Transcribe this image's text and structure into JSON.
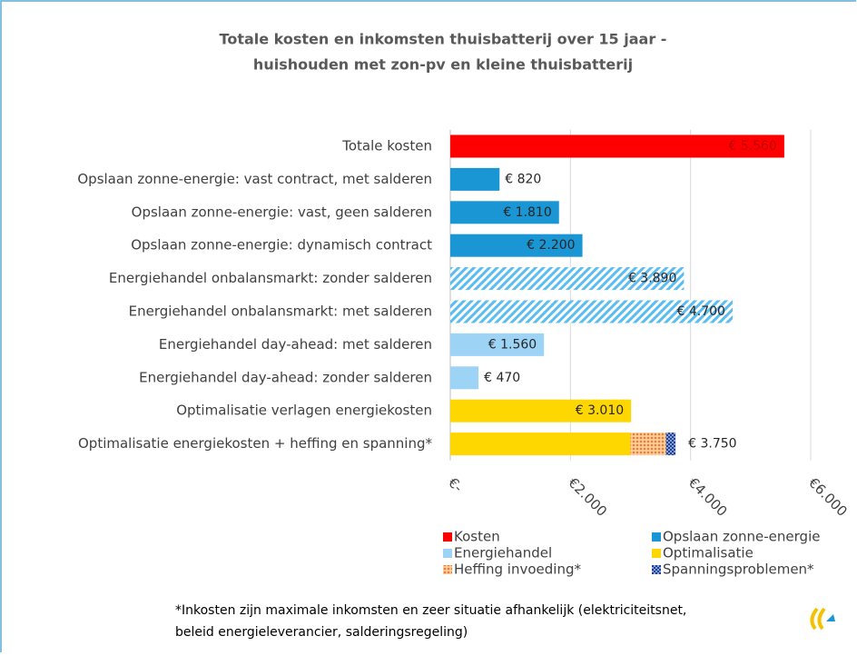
{
  "chart_data": {
    "type": "hbar-stacked",
    "title": [
      "Totale kosten en inkomsten thuisbatterij over 15 jaar -",
      "huishouden met zon-pv en kleine thuisbatterij"
    ],
    "categories": [
      "Totale kosten",
      "Opslaan zonne-energie: vast contract, met salderen",
      "Opslaan zonne-energie: vast, geen salderen",
      "Opslaan zonne-energie: dynamisch contract",
      "Energiehandel onbalansmarkt: zonder salderen",
      "Energiehandel onbalansmarkt: met salderen",
      "Energiehandel day-ahead: met salderen",
      "Energiehandel day-ahead: zonder salderen",
      "Optimalisatie verlagen energiekosten",
      "Optimalisatie energiekosten + heffing en spanning*"
    ],
    "series": [
      {
        "name": "Kosten",
        "color": "#ff0000",
        "values": [
          5560,
          null,
          null,
          null,
          null,
          null,
          null,
          null,
          null,
          null
        ],
        "value_labels": [
          "€ 5.560",
          null,
          null,
          null,
          null,
          null,
          null,
          null,
          null,
          null
        ]
      },
      {
        "name": "Opslaan zonne-energie",
        "color": "#1a96d4",
        "values": [
          null,
          820,
          1810,
          2200,
          null,
          null,
          null,
          null,
          null,
          null
        ],
        "value_labels": [
          null,
          "€ 820",
          "€ 1.810",
          "€ 2.200",
          null,
          null,
          null,
          null,
          null,
          null
        ]
      },
      {
        "name": "Energiehandel",
        "color": "#9dd3f5",
        "hatch": [
          false,
          false,
          false,
          false,
          true,
          true,
          false,
          false,
          false,
          false
        ],
        "values": [
          null,
          null,
          null,
          null,
          3890,
          4700,
          1560,
          470,
          null,
          null
        ],
        "value_labels": [
          null,
          null,
          null,
          null,
          "€ 3.890",
          "€ 4.700",
          "€ 1.560",
          "€ 470",
          null,
          null
        ]
      },
      {
        "name": "Optimalisatie",
        "color": "#ffd700",
        "values": [
          null,
          null,
          null,
          null,
          null,
          null,
          null,
          null,
          3010,
          3000
        ],
        "value_labels": [
          null,
          null,
          null,
          null,
          null,
          null,
          null,
          null,
          "€ 3.010",
          null
        ]
      },
      {
        "name": "Heffing invoeding*",
        "color": "#f79646",
        "fill_style": "dots",
        "values": [
          null,
          null,
          null,
          null,
          null,
          null,
          null,
          null,
          null,
          590
        ]
      },
      {
        "name": "Spanningsproblemen*",
        "color": "#1f3f8f",
        "fill_style": "checker",
        "values": [
          null,
          null,
          null,
          null,
          null,
          null,
          null,
          null,
          null,
          160
        ]
      }
    ],
    "annotations": [
      "€ 3.750"
    ],
    "xlim": [
      0,
      6000
    ],
    "xticks": [
      {
        "value": 0,
        "label": "€-"
      },
      {
        "value": 2000,
        "label": "€2.000"
      },
      {
        "value": 4000,
        "label": "€4.000"
      },
      {
        "value": 6000,
        "label": "€6.000"
      }
    ],
    "grid": true,
    "footnote": [
      "*Inkosten zijn maximale inkomsten en zeer situatie afhankelijk (elektriciteitsnet,",
      "beleid energieleverancier, salderingsregeling)"
    ]
  }
}
